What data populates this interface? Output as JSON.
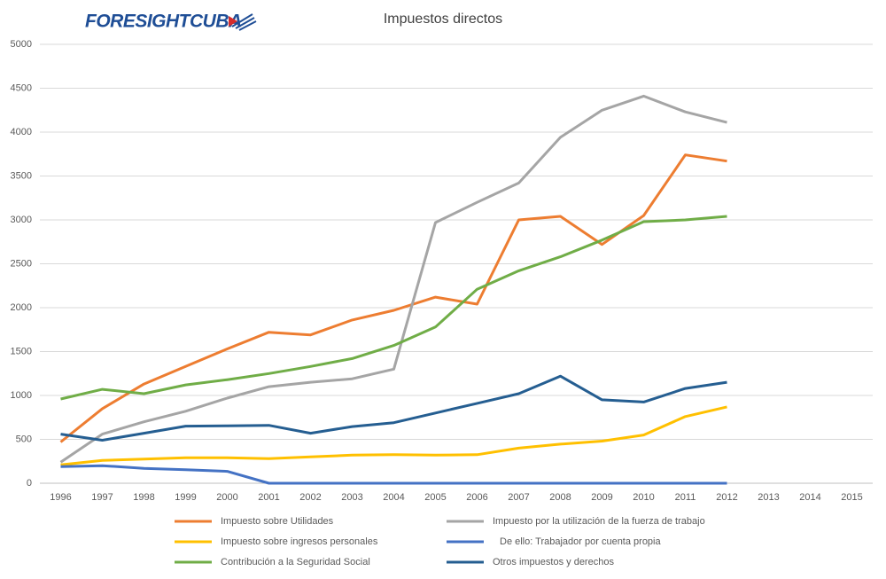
{
  "logo": "FORESIGHTCUBA",
  "chart_data": {
    "type": "line",
    "title": "Impuestos directos",
    "categories": [
      "1996",
      "1997",
      "1998",
      "1999",
      "2000",
      "2001",
      "2002",
      "2003",
      "2004",
      "2005",
      "2006",
      "2007",
      "2008",
      "2009",
      "2010",
      "2011",
      "2012",
      "2013",
      "2014",
      "2015"
    ],
    "ylim": [
      0,
      5000
    ],
    "yticks": [
      0,
      500,
      1000,
      1500,
      2000,
      2500,
      3000,
      3500,
      4000,
      4500,
      5000
    ],
    "grid": true,
    "legend": "bottom",
    "series": [
      {
        "name": "Impuesto sobre Utilidades",
        "color": "#ed7d31",
        "values": [
          470,
          850,
          1130,
          1330,
          1530,
          1720,
          1690,
          1860,
          1970,
          2120,
          2040,
          3000,
          3040,
          2720,
          3050,
          3740,
          3670,
          null,
          null,
          null
        ]
      },
      {
        "name": "Impuesto por la utilización de la fuerza de trabajo",
        "color": "#a5a5a5",
        "values": [
          240,
          560,
          700,
          820,
          970,
          1100,
          1150,
          1190,
          1300,
          2970,
          3200,
          3420,
          3940,
          4250,
          4410,
          4230,
          4110,
          null,
          null,
          null
        ]
      },
      {
        "name": "Impuesto sobre ingresos personales",
        "color": "#ffc000",
        "values": [
          210,
          260,
          275,
          290,
          290,
          280,
          300,
          320,
          325,
          320,
          325,
          400,
          445,
          480,
          550,
          760,
          870,
          null,
          null,
          null
        ]
      },
      {
        "name": "De ello: Trabajador por cuenta propia",
        "color": "#4472c4",
        "values": [
          190,
          200,
          170,
          155,
          135,
          0,
          0,
          0,
          0,
          0,
          0,
          0,
          0,
          0,
          0,
          0,
          0,
          null,
          null,
          null
        ]
      },
      {
        "name": "Contribución a la Seguridad Social",
        "color": "#70ad47",
        "values": [
          960,
          1070,
          1020,
          1120,
          1180,
          1250,
          1330,
          1420,
          1570,
          1780,
          2210,
          2420,
          2580,
          2770,
          2980,
          3000,
          3040,
          null,
          null,
          null
        ]
      },
      {
        "name": "Otros impuestos y derechos",
        "color": "#255e91",
        "values": [
          560,
          490,
          570,
          650,
          655,
          660,
          570,
          645,
          690,
          800,
          910,
          1020,
          1220,
          950,
          925,
          1080,
          1150,
          null,
          null,
          null
        ]
      }
    ]
  }
}
